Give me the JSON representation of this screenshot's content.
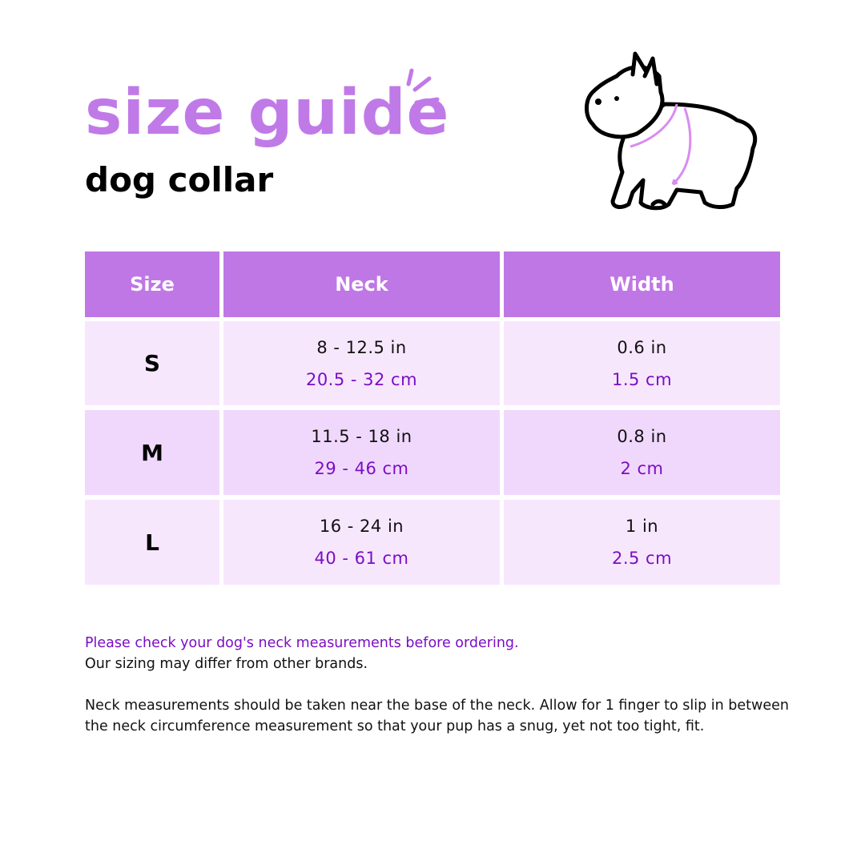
{
  "header": {
    "title": "size guide",
    "subtitle": "dog collar"
  },
  "colors": {
    "accent": "#c07ae8",
    "header_bg": "#bf77e6",
    "row_light": "#f7e7fd",
    "row_dark": "#f0d8fc",
    "metric_text": "#7b0ec4"
  },
  "illustration": {
    "icon": "dog-with-collar-icon"
  },
  "table": {
    "columns": [
      "Size",
      "Neck",
      "Width"
    ],
    "rows": [
      {
        "size": "S",
        "neck_in": "8 - 12.5 in",
        "neck_cm": "20.5 - 32 cm",
        "width_in": "0.6 in",
        "width_cm": "1.5 cm"
      },
      {
        "size": "M",
        "neck_in": "11.5 - 18 in",
        "neck_cm": "29 - 46 cm",
        "width_in": "0.8 in",
        "width_cm": "2 cm"
      },
      {
        "size": "L",
        "neck_in": "16 - 24 in",
        "neck_cm": "40 - 61 cm",
        "width_in": "1 in",
        "width_cm": "2.5 cm"
      }
    ]
  },
  "notes": {
    "highlight": "Please check your dog's neck measurements before ordering.",
    "line2": "Our sizing may differ from other brands.",
    "paragraph": "Neck measurements should be taken near the base of the neck. Allow for 1 finger to slip in between the neck circumference measurement so that your pup has a snug, yet not too tight, fit."
  }
}
